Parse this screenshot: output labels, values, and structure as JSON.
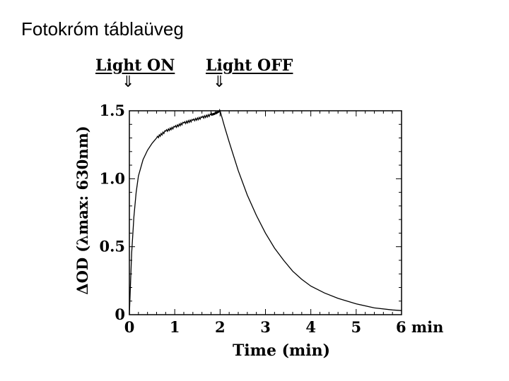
{
  "slide": {
    "title": "Fotokróm táblaüveg"
  },
  "annotations": {
    "light_on": "Light ON",
    "light_off": "Light  OFF",
    "arrow_glyph": "⇓"
  },
  "chart_data": {
    "type": "line",
    "title": "",
    "xlabel": "Time (min)",
    "ylabel": "ΔOD  (λmax: 630nm)",
    "xlim": [
      0,
      6
    ],
    "ylim": [
      0,
      1.5
    ],
    "x_ticks": [
      0,
      1,
      2,
      3,
      4,
      5,
      6
    ],
    "x_tick_labels": [
      "0",
      "1",
      "2",
      "3",
      "4",
      "5",
      "6 min"
    ],
    "y_ticks": [
      0,
      0.5,
      1.0,
      1.5
    ],
    "y_tick_labels": [
      "0",
      "0.5",
      "1.0",
      "1.5"
    ],
    "grid": false,
    "series": [
      {
        "x": [
          0,
          0.05,
          0.1,
          0.15,
          0.2,
          0.3,
          0.4,
          0.5,
          0.6,
          0.8,
          1.0,
          1.2,
          1.4,
          1.6,
          1.8,
          1.9,
          2.0,
          2.1,
          2.2,
          2.4,
          2.6,
          2.8,
          3.0,
          3.2,
          3.4,
          3.6,
          3.8,
          4.0,
          4.3,
          4.6,
          5.0,
          5.4,
          5.8,
          6.0
        ],
        "y": [
          0.0,
          0.45,
          0.72,
          0.9,
          1.02,
          1.14,
          1.21,
          1.26,
          1.3,
          1.35,
          1.38,
          1.41,
          1.43,
          1.45,
          1.47,
          1.48,
          1.5,
          1.38,
          1.27,
          1.06,
          0.88,
          0.73,
          0.6,
          0.49,
          0.4,
          0.32,
          0.26,
          0.21,
          0.16,
          0.12,
          0.08,
          0.05,
          0.035,
          0.03
        ]
      }
    ]
  }
}
